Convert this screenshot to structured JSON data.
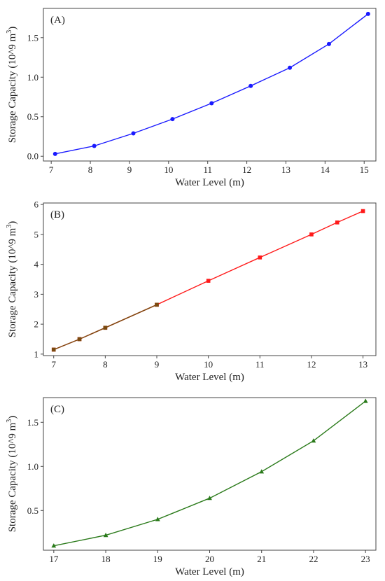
{
  "chart_data": [
    {
      "type": "line",
      "panel_label": "(A)",
      "xlabel": "Water Level (m)",
      "ylabel": "Storage Capacity (10^9 m",
      "ylabel_sup": "3",
      "ylabel_end": ")",
      "xlim": [
        6.8,
        15.3
      ],
      "ylim": [
        -0.06,
        1.87
      ],
      "xticks": [
        7,
        8,
        9,
        10,
        11,
        12,
        13,
        14,
        15
      ],
      "yticks": [
        0.0,
        0.5,
        1.0,
        1.5
      ],
      "ytick_labels": [
        "0.0",
        "0.5",
        "1.0",
        "1.5"
      ],
      "grid": false,
      "series": [
        {
          "color": "#1a1aff",
          "marker": "circle",
          "x": [
            7.1,
            8.1,
            9.1,
            10.1,
            11.1,
            12.1,
            13.1,
            14.1,
            15.1
          ],
          "y": [
            0.03,
            0.13,
            0.29,
            0.47,
            0.67,
            0.89,
            1.12,
            1.42,
            1.8
          ]
        }
      ]
    },
    {
      "type": "line",
      "panel_label": "(B)",
      "xlabel": "Water Level (m)",
      "ylabel": "Storage Capacity (10^9 m",
      "ylabel_sup": "3",
      "ylabel_end": ")",
      "xlim": [
        6.8,
        13.25
      ],
      "ylim": [
        0.95,
        6.05
      ],
      "xticks": [
        7,
        8,
        9,
        10,
        11,
        12,
        13
      ],
      "yticks": [
        1,
        2,
        3,
        4,
        5,
        6
      ],
      "ytick_labels": [
        "1",
        "2",
        "3",
        "4",
        "5",
        "6"
      ],
      "grid": false,
      "series": [
        {
          "color": "#ff1a1a",
          "marker": "square",
          "x": [
            7,
            7.5,
            8,
            9,
            10,
            11,
            12,
            12.5,
            13
          ],
          "y": [
            1.15,
            1.5,
            1.88,
            2.65,
            3.45,
            4.23,
            5.0,
            5.4,
            5.78
          ]
        },
        {
          "color": "#7a4a10",
          "marker": "square",
          "x": [
            7,
            7.5,
            8,
            9
          ],
          "y": [
            1.15,
            1.5,
            1.88,
            2.65
          ]
        }
      ]
    },
    {
      "type": "line",
      "panel_label": "(C)",
      "xlabel": "Water Level (m)",
      "ylabel": "Storage Capacity (10^9 m",
      "ylabel_sup": "3",
      "ylabel_end": ")",
      "xlim": [
        16.8,
        23.2
      ],
      "ylim": [
        0.05,
        1.78
      ],
      "xticks": [
        17,
        18,
        19,
        20,
        21,
        22,
        23
      ],
      "yticks": [
        0.5,
        1.0,
        1.5
      ],
      "ytick_labels": [
        "0.5",
        "1.0",
        "1.5"
      ],
      "grid": false,
      "series": [
        {
          "color": "#2a7a1a",
          "marker": "triangle",
          "x": [
            17,
            18,
            19,
            20,
            21,
            22,
            23
          ],
          "y": [
            0.1,
            0.22,
            0.4,
            0.64,
            0.94,
            1.29,
            1.74
          ]
        }
      ]
    }
  ]
}
